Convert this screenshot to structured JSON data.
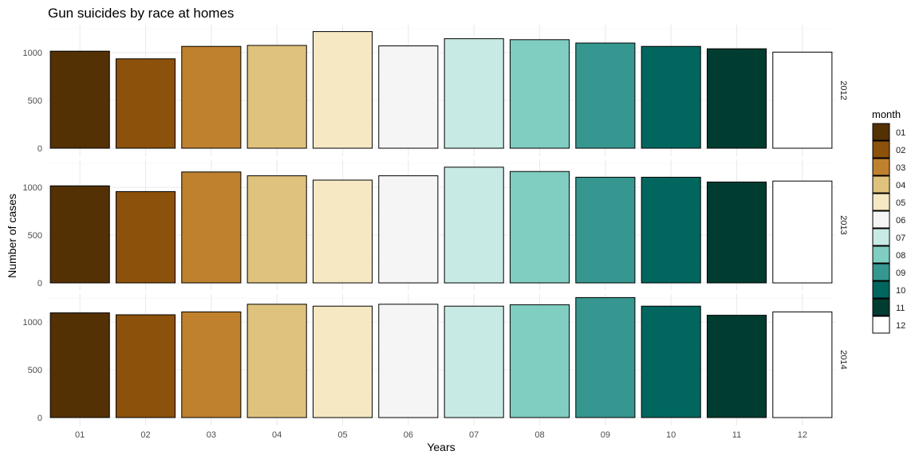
{
  "chart_data": {
    "type": "bar",
    "title": "Gun suicides by race at homes",
    "xlabel": "Years",
    "ylabel": "Number of cases",
    "ylim": [
      0,
      1250
    ],
    "y_ticks": [
      "0",
      "500",
      "1000"
    ],
    "grid": true,
    "legend_position": "right",
    "legend_title": "month",
    "categories": [
      "01",
      "02",
      "03",
      "04",
      "05",
      "06",
      "07",
      "08",
      "09",
      "10",
      "11",
      "12"
    ],
    "colors": [
      "#543005",
      "#8C510A",
      "#BF812D",
      "#DFC27D",
      "#F6E8C3",
      "#F5F5F5",
      "#C7EAE5",
      "#80CDC1",
      "#35978F",
      "#01665E",
      "#003C30",
      "#FFFFFF"
    ],
    "facets": [
      {
        "label": "2012",
        "values": [
          1015,
          935,
          1065,
          1075,
          1220,
          1070,
          1145,
          1135,
          1100,
          1065,
          1040,
          1005
        ]
      },
      {
        "label": "2013",
        "values": [
          1015,
          955,
          1160,
          1120,
          1075,
          1120,
          1210,
          1165,
          1105,
          1105,
          1055,
          1065
        ]
      },
      {
        "label": "2014",
        "values": [
          1095,
          1075,
          1105,
          1185,
          1165,
          1185,
          1165,
          1180,
          1255,
          1165,
          1070,
          1105
        ]
      }
    ]
  }
}
